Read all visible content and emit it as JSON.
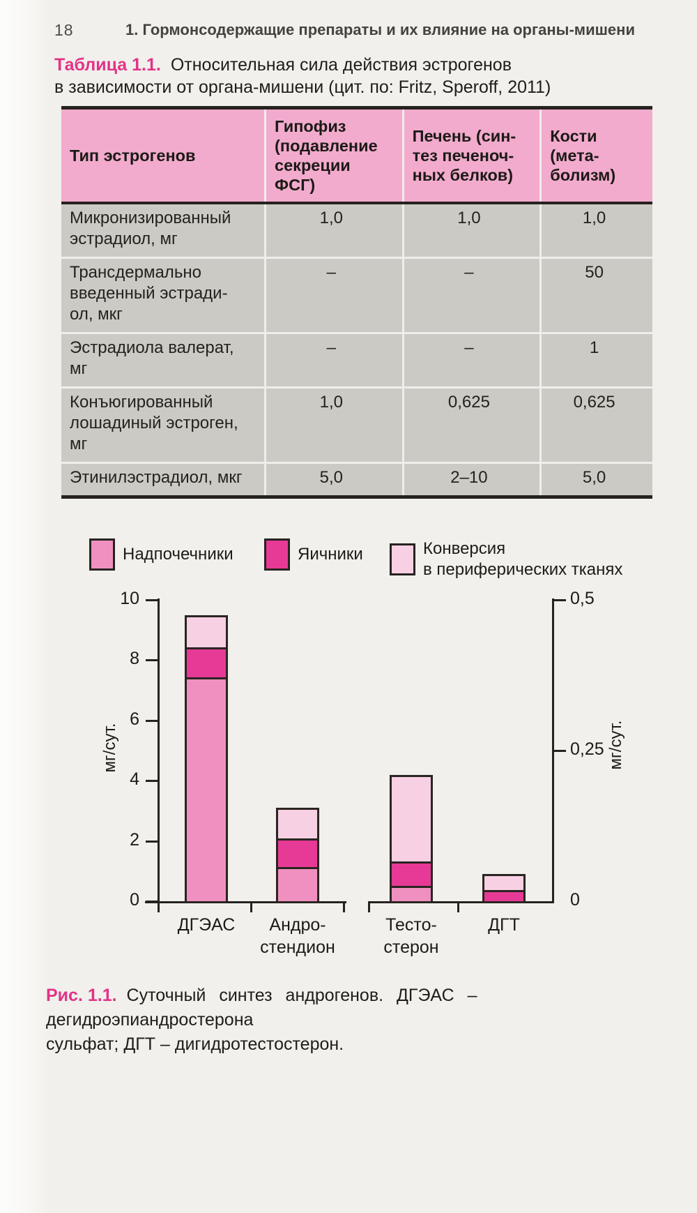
{
  "page": {
    "number": "18",
    "chapter_header": "1. Гормонсодержащие препараты и их влияние на органы-мишени",
    "bleed_through_text": "1. Гормонсодержащие\nпрепараты и их влияние\nна органы-мишени"
  },
  "table": {
    "caption_label": "Таблица 1.1.",
    "caption_line1": "Относительная сила действия эстрогенов",
    "caption_line2": "в зависимости от органа-мишени (цит. по: Fritz, Speroff, 2011)",
    "columns": [
      "Тип эстрогенов",
      "Гипофиз\n(подавление\nсекреции\nФСГ)",
      "Печень (син-\nтез печеноч-\nных белков)",
      "Кости (мета-\nболизм)"
    ],
    "rows": [
      {
        "label": "Микронизированный\nэстрадиол, мг",
        "values": [
          "1,0",
          "1,0",
          "1,0"
        ]
      },
      {
        "label": "Трансдермально\nвведенный эстради-\nол, мкг",
        "values": [
          "–",
          "–",
          "50"
        ]
      },
      {
        "label": "Эстрадиола валерат,\nмг",
        "values": [
          "–",
          "–",
          "1"
        ]
      },
      {
        "label": "Конъюгированный\nлошадиный эстроген,\nмг",
        "values": [
          "1,0",
          "0,625",
          "0,625"
        ]
      },
      {
        "label": "Этинилэстрадиол, мкг",
        "values": [
          "5,0",
          "2–10",
          "5,0"
        ]
      }
    ]
  },
  "figure": {
    "caption_label": "Рис. 1.1.",
    "caption_line1": "Суточный синтез андрогенов. ДГЭАС – дегидроэпиандростерона",
    "caption_line2": "сульфат; ДГТ – дигидротестостерон."
  },
  "chart_data": {
    "type": "bar",
    "stacked": true,
    "title": "Суточный синтез андрогенов",
    "categories": [
      "ДГЭАС",
      "Андро-\nстендион",
      "Тесто-\nстерон",
      "ДГТ"
    ],
    "category_axis": [
      "left",
      "left",
      "right",
      "right"
    ],
    "series": [
      {
        "name": "Надпочечники",
        "color": "#f090c0",
        "values": [
          7.5,
          1.2,
          0.03,
          0
        ]
      },
      {
        "name": "Яичники",
        "color": "#e73a96",
        "values": [
          1.0,
          0.95,
          0.04,
          0.022
        ]
      },
      {
        "name": "Конверсия\nв периферических тканях",
        "color": "#f7d0e4",
        "values": [
          1.0,
          0.95,
          0.14,
          0.023
        ]
      }
    ],
    "left_axis": {
      "label": "мг/сут.",
      "ticks": [
        "10",
        "8",
        "6",
        "4",
        "2",
        "0"
      ],
      "range": [
        0,
        10
      ]
    },
    "right_axis": {
      "label": "мг/сут.",
      "ticks": [
        "0,5",
        "0,25",
        "0"
      ],
      "range": [
        0,
        0.5
      ]
    },
    "grid": false,
    "legend_position": "top"
  },
  "colors": {
    "accent_magenta": "#e23387",
    "table_header_bg": "#f2abcd",
    "table_body_bg": "#cbcac4",
    "paper": "#f1f0ec",
    "ink": "#262220"
  }
}
